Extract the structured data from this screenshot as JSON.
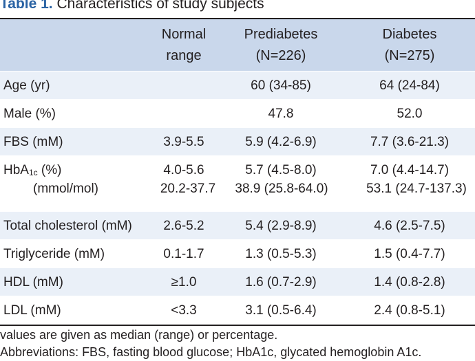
{
  "caption": {
    "label": "Table 1.",
    "title": "Characteristics of study subjects"
  },
  "columns": [
    {
      "line1": "",
      "line2": ""
    },
    {
      "line1": "Normal",
      "line2": "range"
    },
    {
      "line1": "Prediabetes",
      "line2": "(N=226)"
    },
    {
      "line1": "Diabetes",
      "line2": "(N=275)"
    }
  ],
  "rows": {
    "age": {
      "label": "Age (yr)",
      "normal": "",
      "prediabetes": "60 (34-85)",
      "diabetes": "64 (24-84)"
    },
    "male": {
      "label": "Male (%)",
      "prediabetes": "47.8",
      "diabetes": "52.0"
    },
    "fbs": {
      "label": "FBS (mM)",
      "normal": "3.9-5.5",
      "prediabetes": "5.9 (4.2-6.9)",
      "diabetes": "7.7 (3.6-21.3)"
    },
    "hba1c": {
      "label_main": "HbA",
      "label_sub": "1c",
      "label_unit": " (%)",
      "label2": "(mmol/mol)",
      "normal": "4.0-5.6",
      "normal2": "20.2-37.7",
      "prediabetes": "5.7 (4.5-8.0)",
      "prediabetes2": "38.9 (25.8-64.0)",
      "diabetes": "7.0 (4.4-14.7)",
      "diabetes2": "53.1 (24.7-137.3)"
    },
    "tc": {
      "label": "Total cholesterol (mM)",
      "normal": "2.6-5.2",
      "prediabetes": "5.4 (2.9-8.9)",
      "diabetes": "4.6 (2.5-7.5)"
    },
    "tg": {
      "label": "Triglyceride (mM)",
      "normal": "0.1-1.7",
      "prediabetes": "1.3 (0.5-5.3)",
      "diabetes": "1.5 (0.4-7.7)"
    },
    "hdl": {
      "label": "HDL (mM)",
      "normal": "≥1.0",
      "prediabetes": "1.6 (0.7-2.9)",
      "diabetes": "1.4 (0.8-2.8)"
    },
    "ldl": {
      "label": "LDL (mM)",
      "normal": "<3.3",
      "prediabetes": "3.1 (0.5-6.4)",
      "diabetes": "2.4 (0.8-5.1)"
    }
  },
  "footnotes": {
    "line1": "values are given as median (range) or percentage.",
    "line2": "Abbreviations: FBS, fasting blood glucose; HbA1c, glycated hemoglobin A1c."
  }
}
